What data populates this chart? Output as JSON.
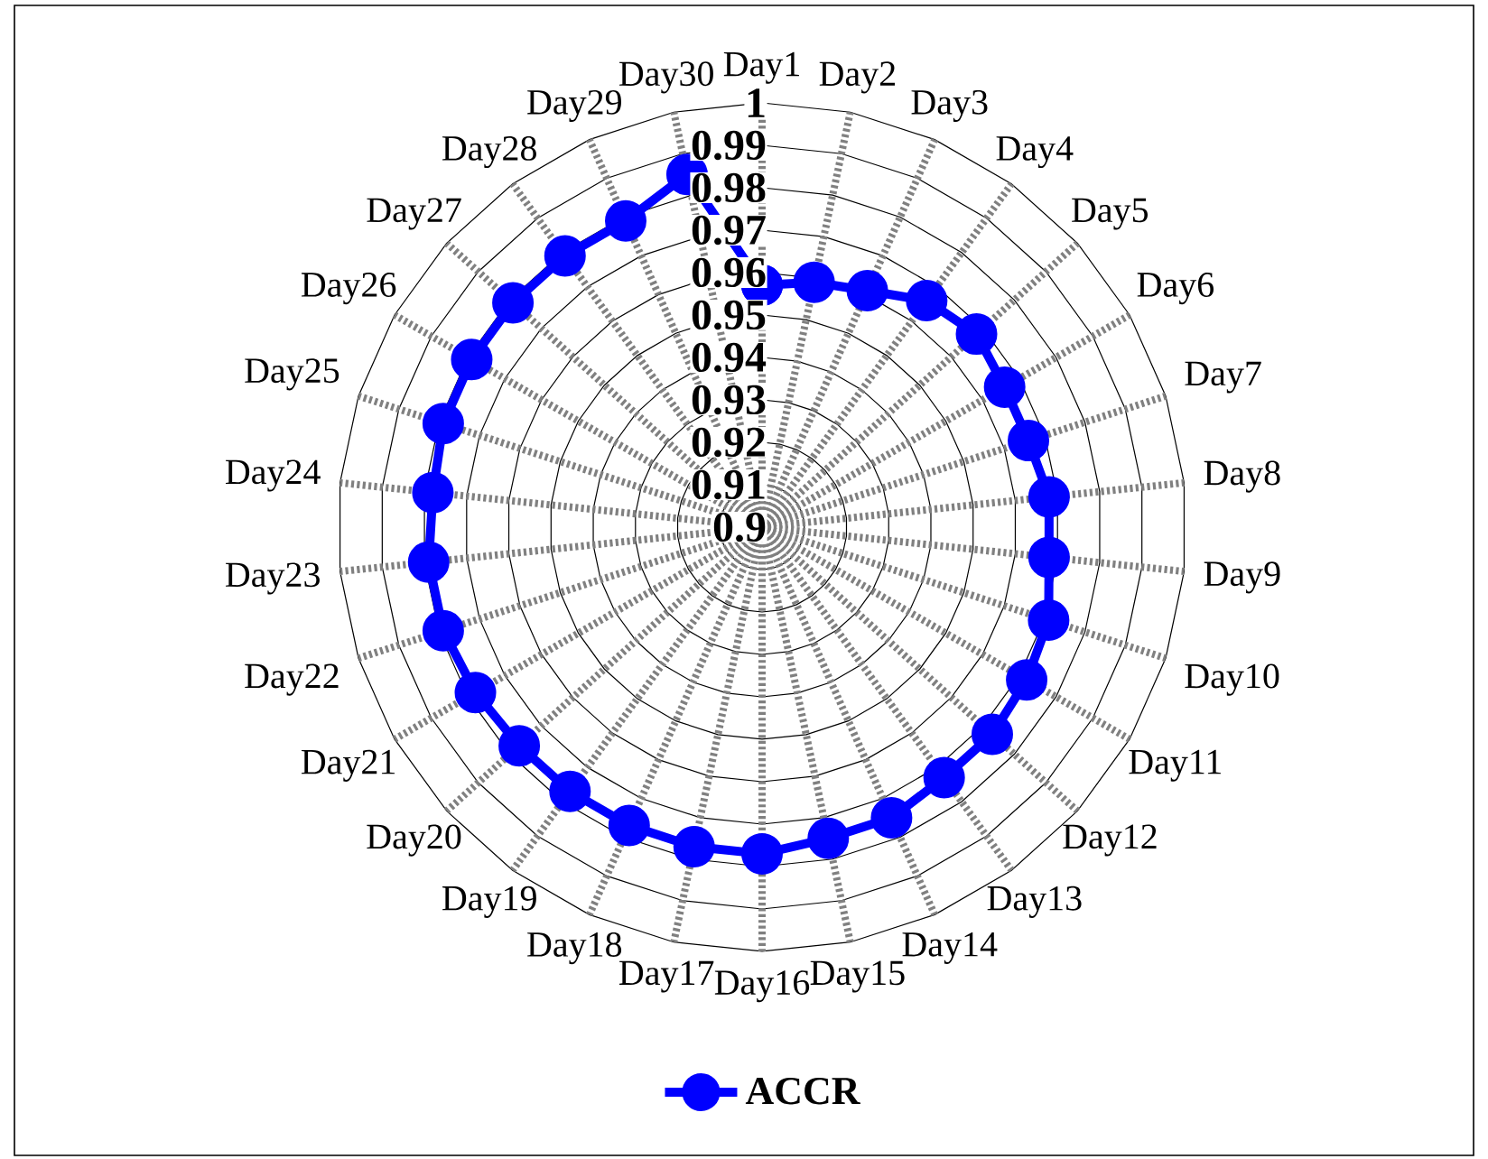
{
  "chart_data": {
    "type": "radar",
    "categories": [
      "Day1",
      "Day2",
      "Day3",
      "Day4",
      "Day5",
      "Day6",
      "Day7",
      "Day8",
      "Day9",
      "Day10",
      "Day11",
      "Day12",
      "Day13",
      "Day14",
      "Day15",
      "Day16",
      "Day17",
      "Day18",
      "Day19",
      "Day20",
      "Day21",
      "Day22",
      "Day23",
      "Day24",
      "Day25",
      "Day26",
      "Day27",
      "Day28",
      "Day29",
      "Day30"
    ],
    "series": [
      {
        "name": "ACCR",
        "color": "#0000ff",
        "values": [
          0.957,
          0.959,
          0.961,
          0.966,
          0.968,
          0.966,
          0.966,
          0.968,
          0.968,
          0.971,
          0.972,
          0.973,
          0.973,
          0.975,
          0.975,
          0.977,
          0.977,
          0.977,
          0.977,
          0.977,
          0.978,
          0.979,
          0.979,
          0.978,
          0.979,
          0.979,
          0.979,
          0.979,
          0.979,
          0.985
        ]
      }
    ],
    "ylim": [
      0.9,
      1
    ],
    "yticks": [
      0.9,
      0.91,
      0.92,
      0.93,
      0.94,
      0.95,
      0.96,
      0.97,
      0.98,
      0.99,
      1
    ],
    "grid": true,
    "legend": "bottom",
    "marker": "circle",
    "line_style": "solid"
  }
}
